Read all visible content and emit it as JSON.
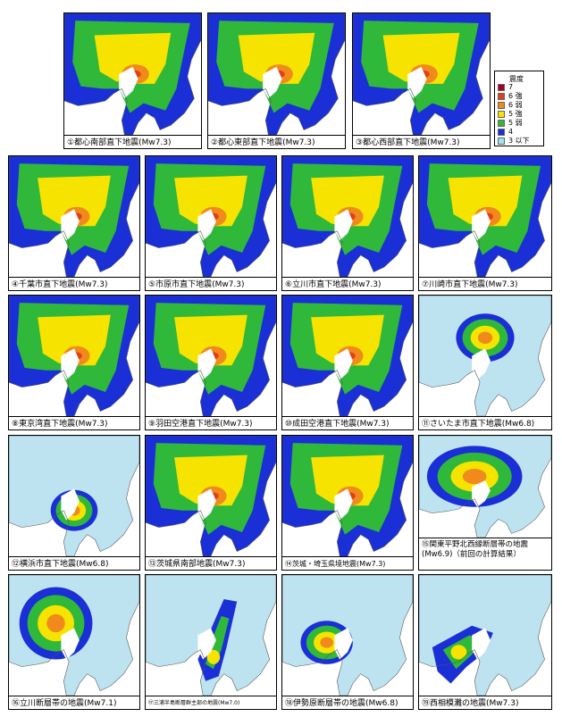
{
  "legend": {
    "title": "震度",
    "items": [
      {
        "label": "7",
        "color": "#a5002a"
      },
      {
        "label": "6 強",
        "color": "#e0411a"
      },
      {
        "label": "6 弱",
        "color": "#f08a1c"
      },
      {
        "label": "5 強",
        "color": "#f6e300"
      },
      {
        "label": "5 弱",
        "color": "#30b83a"
      },
      {
        "label": "4",
        "color": "#1a2fd6"
      },
      {
        "label": "3 以下",
        "color": "#9fe3f0"
      }
    ]
  },
  "colors": {
    "sea": "#ffffff",
    "land_low": "#bde3f1",
    "i3": "#9fe3f0",
    "i4": "#1a2fd6",
    "i5l": "#30b83a",
    "i5u": "#f6e300",
    "i6l": "#f08a1c",
    "i6u": "#e0411a",
    "i7": "#a5002a"
  },
  "panels": [
    {
      "caption": "①都心南部直下地震(Mw7.3)"
    },
    {
      "caption": "②都心東部直下地震(Mw7.3)"
    },
    {
      "caption": "③都心西部直下地震(Mw7.3)"
    },
    {
      "caption": "④千葉市直下地震(Mw7.3)"
    },
    {
      "caption": "⑤市原市直下地震(Mw7.3)"
    },
    {
      "caption": "⑥立川市直下地震(Mw7.3)"
    },
    {
      "caption": "⑦川崎市直下地震(Mw7.3)"
    },
    {
      "caption": "⑧東京湾直下地震(Mw7.3)"
    },
    {
      "caption": "⑨羽田空港直下地震(Mw7.3)"
    },
    {
      "caption": "⑩成田空港直下地震(Mw7.3)"
    },
    {
      "caption": "⑪さいたま市直下地震(Mw6.8)"
    },
    {
      "caption": "⑫横浜市直下地震(Mw6.8)"
    },
    {
      "caption": "⑬茨城県南部地震(Mw7.3)"
    },
    {
      "caption": "⑭茨城・埼玉県境地震(Mw7.3)"
    },
    {
      "caption": "⑮関東平野北西縁断層帯の地震(Mw6.9)（前回の計算結果）"
    },
    {
      "caption": "⑯立川断層帯の地震(Mw7.1)"
    },
    {
      "caption": "⑰三浦半島断層群主部の地震(Mw7.0)"
    },
    {
      "caption": "⑱伊勢原断層帯の地震(Mw6.8)"
    },
    {
      "caption": "⑲西相模灘の地震(Mw7.3)"
    }
  ]
}
